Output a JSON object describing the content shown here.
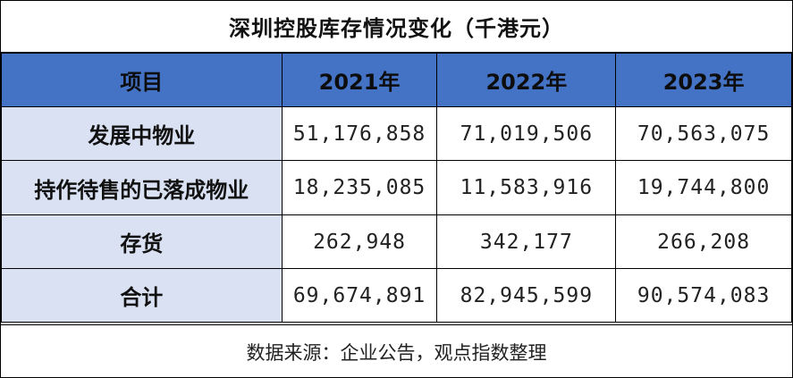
{
  "chart_data": {
    "type": "table",
    "title": "深圳控股库存情况变化（千港元）",
    "columns": [
      "项目",
      "2021年",
      "2022年",
      "2023年"
    ],
    "rows": [
      {
        "label": "发展中物业",
        "values": [
          "51,176,858",
          "71,019,506",
          "70,563,075"
        ]
      },
      {
        "label": "持作待售的已落成物业",
        "values": [
          "18,235,085",
          "11,583,916",
          "19,744,800"
        ]
      },
      {
        "label": "存货",
        "values": [
          "262,948",
          "342,177",
          "266,208"
        ]
      },
      {
        "label": "合计",
        "values": [
          "69,674,891",
          "82,945,599",
          "90,574,083"
        ]
      }
    ],
    "source": "数据来源：企业公告，观点指数整理"
  },
  "colors": {
    "header_bg": "#4472c4",
    "label_bg": "#d9e1f2",
    "border": "#000000"
  }
}
